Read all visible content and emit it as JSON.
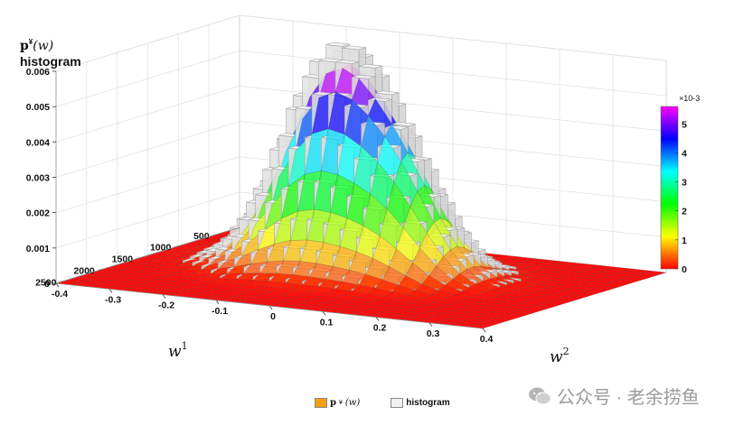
{
  "chart_data": {
    "type": "surface-3d",
    "z_label_line1_bold": "p",
    "z_label_line1_sup": "¥",
    "z_label_line1_rest": "(w)",
    "z_label_line2": "histogram",
    "x_axis": {
      "label_base": "w",
      "label_sup": "1",
      "ticks": [
        "500",
        "1000",
        "1500",
        "2000",
        "2500"
      ],
      "range": [
        200,
        2600
      ]
    },
    "y_axis": {
      "label_base": "w",
      "label_sup": "2",
      "ticks": [
        "-0.4",
        "-0.3",
        "-0.2",
        "-0.1",
        "0",
        "0.1",
        "0.2",
        "0.3",
        "0.4"
      ],
      "range": [
        -0.4,
        0.4
      ]
    },
    "z_axis": {
      "ticks": [
        "0",
        "0.001",
        "0.002",
        "0.003",
        "0.004",
        "0.005",
        "0.006"
      ],
      "range": [
        0,
        0.006
      ]
    },
    "surface_peak": {
      "w1": 1150,
      "w2": -0.08,
      "value": 0.0055
    },
    "colorbar": {
      "ticks": [
        "0",
        "1",
        "2",
        "3",
        "4",
        "5"
      ],
      "exponent": "×10-3",
      "range": [
        0,
        5.6
      ]
    },
    "legend": [
      {
        "label_bold": "p",
        "label_sup": "¥",
        "label_rest": "(w)",
        "color": "#f5a000"
      },
      {
        "label": "histogram",
        "color": "#f0f0f0"
      }
    ]
  },
  "watermark": "公众号 · 老余捞鱼"
}
